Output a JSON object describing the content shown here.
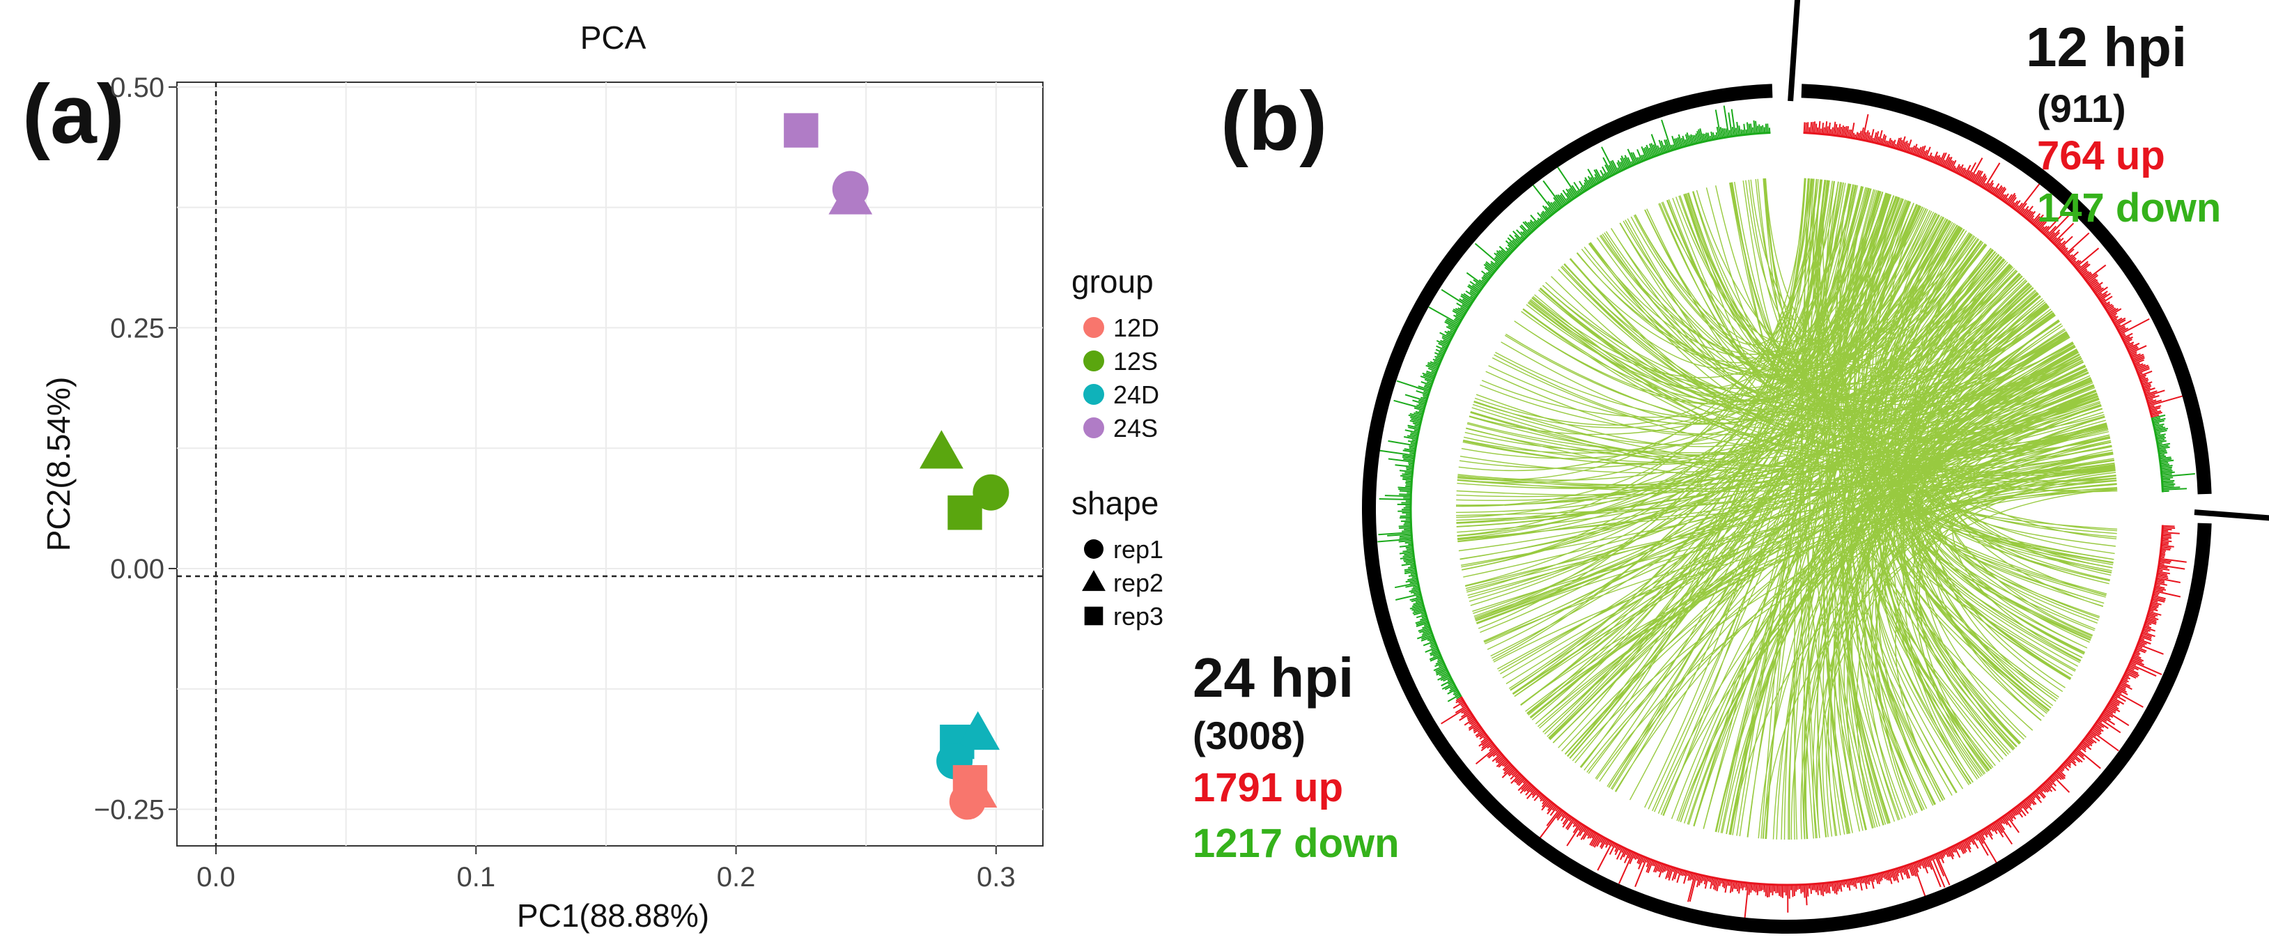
{
  "panel_a": {
    "label": "(a)",
    "chart_data": {
      "type": "scatter",
      "title": "PCA",
      "xlabel": "PC1(88.88%)",
      "ylabel": "PC2(8.54%)",
      "xlim": [
        -0.015,
        0.318
      ],
      "ylim": [
        -0.288,
        0.505
      ],
      "xticks": [
        0.0,
        0.1,
        0.2,
        0.3
      ],
      "xtick_labels": [
        "0.0",
        "0.1",
        "0.2",
        "0.3"
      ],
      "yticks": [
        -0.25,
        0.0,
        0.25,
        0.5
      ],
      "ytick_labels": [
        "−0.25",
        "0.00",
        "0.25",
        "0.50"
      ],
      "grid": true,
      "reference_lines": {
        "x": 0.0,
        "y": -0.008
      },
      "legend_position": "right",
      "legend_group": {
        "title": "group",
        "entries": [
          {
            "name": "12D",
            "color": "#F8766D"
          },
          {
            "name": "12S",
            "color": "#5AA60F"
          },
          {
            "name": "24D",
            "color": "#0FB2BA"
          },
          {
            "name": "24S",
            "color": "#B07CC6"
          }
        ]
      },
      "legend_shape": {
        "title": "shape",
        "entries": [
          {
            "name": "rep1",
            "shape": "circle"
          },
          {
            "name": "rep2",
            "shape": "triangle"
          },
          {
            "name": "rep3",
            "shape": "square"
          }
        ]
      },
      "points": [
        {
          "group": "24S",
          "rep": "rep3",
          "x": 0.225,
          "y": 0.455
        },
        {
          "group": "24S",
          "rep": "rep1",
          "x": 0.244,
          "y": 0.394
        },
        {
          "group": "24S",
          "rep": "rep2",
          "x": 0.244,
          "y": 0.384
        },
        {
          "group": "12S",
          "rep": "rep2",
          "x": 0.279,
          "y": 0.12
        },
        {
          "group": "12S",
          "rep": "rep1",
          "x": 0.298,
          "y": 0.079
        },
        {
          "group": "12S",
          "rep": "rep3",
          "x": 0.288,
          "y": 0.058
        },
        {
          "group": "24D",
          "rep": "rep3",
          "x": 0.285,
          "y": -0.18
        },
        {
          "group": "24D",
          "rep": "rep2",
          "x": 0.293,
          "y": -0.172
        },
        {
          "group": "24D",
          "rep": "rep1",
          "x": 0.284,
          "y": -0.2
        },
        {
          "group": "12D",
          "rep": "rep3",
          "x": 0.29,
          "y": -0.222
        },
        {
          "group": "12D",
          "rep": "rep2",
          "x": 0.292,
          "y": -0.232
        },
        {
          "group": "12D",
          "rep": "rep1",
          "x": 0.289,
          "y": -0.242
        }
      ]
    }
  },
  "panel_b": {
    "label": "(b)",
    "chart_data": {
      "type": "circos",
      "segments": [
        {
          "name": "12 hpi",
          "total": "(911)",
          "up": "764 up",
          "down": "147 down",
          "up_count": 764,
          "down_count": 147
        },
        {
          "name": "24 hpi",
          "total": "(3008)",
          "up": "1791 up",
          "down": "1217 down",
          "up_count": 1791,
          "down_count": 1217
        }
      ],
      "colors": {
        "up": "#E8141E",
        "down": "#1BAA1B",
        "links": "#86C11E",
        "ring": "#000000"
      }
    }
  },
  "colors": {
    "up_text": "#E8141E",
    "down_text": "#35B21B",
    "label_text": "#111111"
  }
}
